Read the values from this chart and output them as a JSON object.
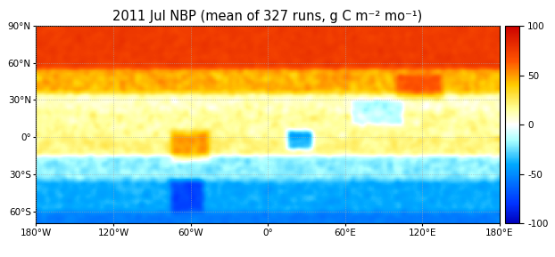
{
  "title": "2011 Jul NBP (mean of 327 runs, g C m⁻² mo⁻¹)",
  "colorbar_ticks": [
    -100,
    -50,
    0,
    50,
    100
  ],
  "vmin": -100,
  "vmax": 100,
  "xlim": [
    -180,
    180
  ],
  "ylim": [
    -70,
    90
  ],
  "xticks": [
    -180,
    -120,
    -60,
    0,
    60,
    120,
    180
  ],
  "yticks": [
    -60,
    -30,
    0,
    30,
    60,
    90
  ],
  "xlabel_ticks": [
    "180°W",
    "120°W",
    "60°W",
    "0°",
    "60°E",
    "120°E",
    "180°E"
  ],
  "ylabel_ticks": [
    "60°S",
    "30°S",
    "0°",
    "30°N",
    "60°N",
    "90°N"
  ],
  "background_color": "#ffffff",
  "grid_color": "#aaaaaa",
  "title_fontsize": 10.5,
  "tick_fontsize": 7.5,
  "cmap_colors": [
    [
      0.0,
      "#0000bb"
    ],
    [
      0.1,
      "#0033ff"
    ],
    [
      0.3,
      "#00aaff"
    ],
    [
      0.42,
      "#aaffff"
    ],
    [
      0.5,
      "#ffffff"
    ],
    [
      0.58,
      "#ffff99"
    ],
    [
      0.7,
      "#ffcc00"
    ],
    [
      0.82,
      "#ff5500"
    ],
    [
      1.0,
      "#cc0000"
    ]
  ]
}
